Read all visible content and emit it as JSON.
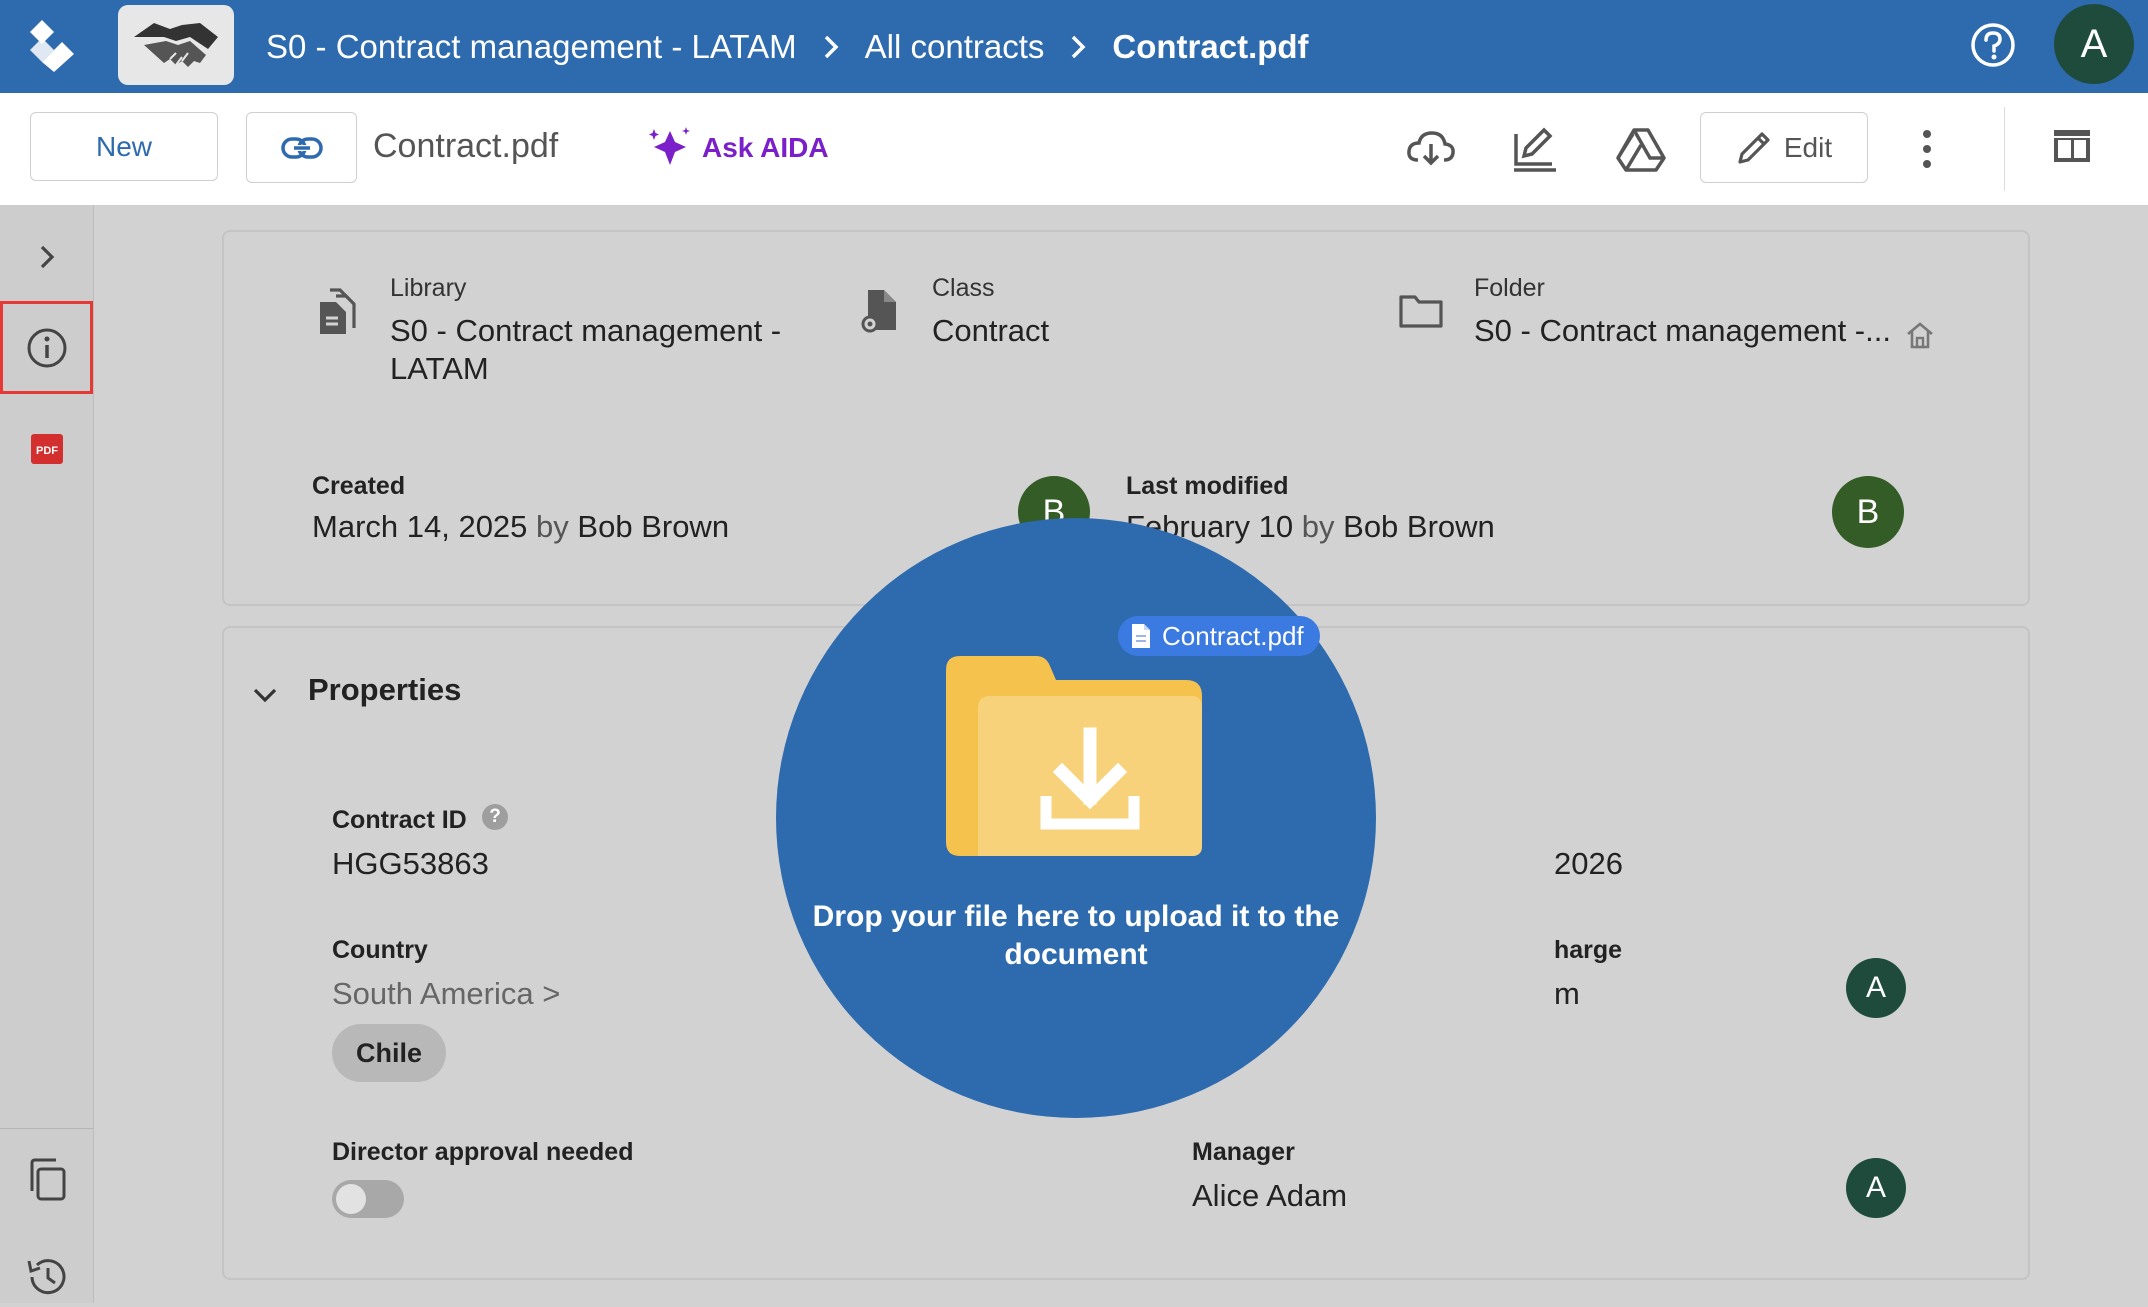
{
  "header": {
    "breadcrumbs": [
      "S0 - Contract management - LATAM",
      "All contracts",
      "Contract.pdf"
    ],
    "user_initial": "A"
  },
  "toolbar": {
    "new_label": "New",
    "doc_title": "Contract.pdf",
    "ask_aida_label": "Ask AIDA",
    "edit_label": "Edit"
  },
  "summary": {
    "library_label": "Library",
    "library_value": "S0 - Contract management - LATAM",
    "class_label": "Class",
    "class_value": "Contract",
    "folder_label": "Folder",
    "folder_value": "S0 - Contract management -...",
    "created_label": "Created",
    "created_date": "March 14, 2025",
    "created_by_word": "by",
    "created_by": "Bob Brown",
    "created_avatar": "B",
    "modified_label": "Last modified",
    "modified_date": "February 10",
    "modified_by_word": "by",
    "modified_by": "Bob Brown",
    "modified_avatar": "B"
  },
  "properties": {
    "section_title": "Properties",
    "contract_id_label": "Contract ID",
    "contract_id_value": "HGG53863",
    "partial_date_value": "2026",
    "country_label": "Country",
    "country_path": "South America >",
    "country_chip": "Chile",
    "in_charge_label_partial": "harge",
    "in_charge_value_partial": "m",
    "in_charge_avatar": "A",
    "director_label": "Director approval needed",
    "director_approval": false,
    "manager_label": "Manager",
    "manager_value": "Alice Adam",
    "manager_avatar": "A"
  },
  "drop_overlay": {
    "message": "Drop your file here to upload it to the document",
    "dragged_file": "Contract.pdf"
  },
  "colors": {
    "brand_blue": "#2e6aae",
    "aida_purple": "#7a1fc9",
    "avatar_green": "#335c26",
    "avatar_dark": "#1e4b3c",
    "highlight_red": "#e53935",
    "folder_yellow": "#f5c24d"
  }
}
